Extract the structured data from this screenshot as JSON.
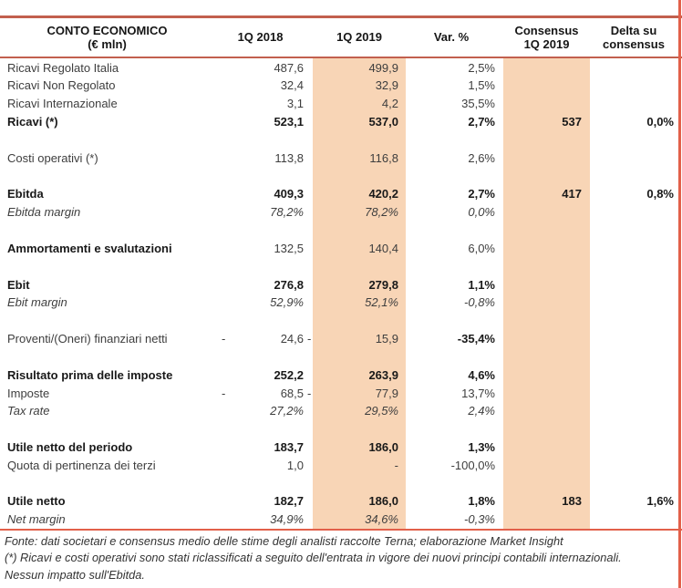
{
  "colors": {
    "band": "#F8D5B6",
    "line_dark": "#C2604E",
    "line_bright": "#E2604A"
  },
  "table": {
    "title": {
      "line1": "CONTO ECONOMICO",
      "line2": "(€ mln)"
    },
    "columns": {
      "q2018": "1Q 2018",
      "q2019": "1Q 2019",
      "var": "Var. %",
      "consensus_line1": "Consensus",
      "consensus_line2": "1Q 2019",
      "delta_line1": "Delta su",
      "delta_line2": "consensus"
    },
    "rows": [
      {
        "label": "Ricavi Regolato Italia",
        "v18": "487,6",
        "v19": "499,9",
        "var": "2,5%"
      },
      {
        "label": "Ricavi Non Regolato",
        "v18": "32,4",
        "v19": "32,9",
        "var": "1,5%"
      },
      {
        "label": "Ricavi Internazionale",
        "v18": "3,1",
        "v19": "4,2",
        "var": "35,5%"
      },
      {
        "label": "Ricavi (*)",
        "style": "bold",
        "v18": "523,1",
        "v19": "537,0",
        "var": "2,7%",
        "cons": "537",
        "delta": "0,0%"
      },
      {
        "blank": true
      },
      {
        "label": "Costi operativi (*)",
        "v18": "113,8",
        "v19": "116,8",
        "var": "2,6%"
      },
      {
        "blank": true
      },
      {
        "label": "Ebitda",
        "style": "bold",
        "v18": "409,3",
        "v19": "420,2",
        "var": "2,7%",
        "cons": "417",
        "delta": "0,8%"
      },
      {
        "label": "Ebitda margin",
        "style": "italic",
        "v18": "78,2%",
        "v19": "78,2%",
        "var": "0,0%"
      },
      {
        "blank": true
      },
      {
        "label": "Ammortamenti e svalutazioni",
        "style": "bold-label",
        "v18": "132,5",
        "v19": "140,4",
        "var": "6,0%"
      },
      {
        "blank": true
      },
      {
        "label": "Ebit",
        "style": "bold",
        "v18": "276,8",
        "v19": "279,8",
        "var": "1,1%"
      },
      {
        "label": "Ebit margin",
        "style": "italic",
        "v18": "52,9%",
        "v19": "52,1%",
        "var": "-0,8%"
      },
      {
        "blank": true
      },
      {
        "label": "Proventi/(Oneri) finanziari netti",
        "neg18": true,
        "v18": "24,6",
        "neg19": true,
        "v19": "15,9",
        "var": "-35,4%",
        "var_bold": true
      },
      {
        "blank": true
      },
      {
        "label": "Risultato prima delle imposte",
        "style": "bold",
        "v18": "252,2",
        "v19": "263,9",
        "var": "4,6%"
      },
      {
        "label": "Imposte",
        "neg18": true,
        "v18": "68,5",
        "neg19": true,
        "v19": "77,9",
        "var": "13,7%"
      },
      {
        "label": "Tax rate",
        "style": "italic",
        "v18": "27,2%",
        "v19": "29,5%",
        "var": "2,4%"
      },
      {
        "blank": true
      },
      {
        "label": "Utile netto del periodo",
        "style": "bold",
        "v18": "183,7",
        "v19": "186,0",
        "var": "1,3%"
      },
      {
        "label": "Quota di pertinenza dei terzi",
        "v18": "1,0",
        "v19": "-",
        "var": "-100,0%"
      },
      {
        "blank": true
      },
      {
        "label": "Utile netto",
        "style": "bold",
        "v18": "182,7",
        "v19": "186,0",
        "var": "1,8%",
        "cons": "183",
        "delta": "1,6%"
      },
      {
        "label": "Net margin",
        "style": "italic",
        "v18": "34,9%",
        "v19": "34,6%",
        "var": "-0,3%"
      }
    ]
  },
  "footer": {
    "line1": "Fonte: dati societari e consensus medio delle stime degli analisti raccolte Terna; elaborazione Market Insight",
    "line2": "(*) Ricavi e costi operativi sono stati riclassificati a seguito dell'entrata in vigore dei nuovi principi contabili internazionali.",
    "line3": "Nessun impatto sull'Ebitda."
  }
}
